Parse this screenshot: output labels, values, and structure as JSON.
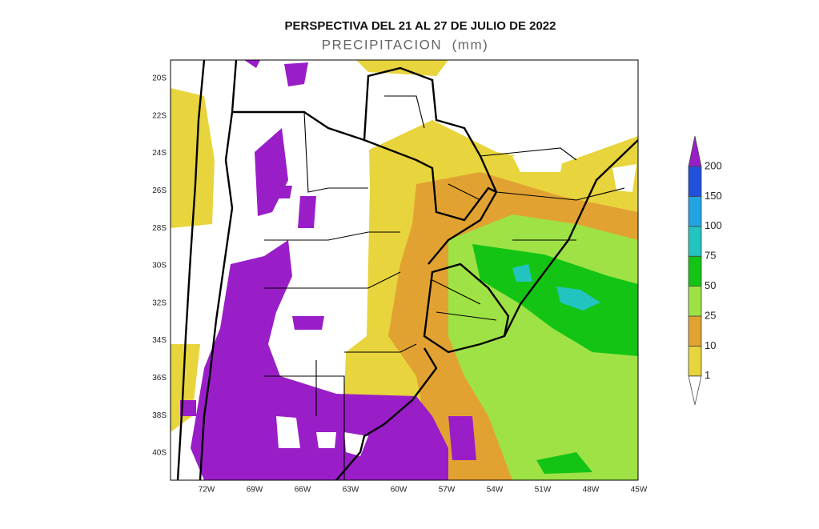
{
  "header": {
    "title": "PERSPECTIVA DEL 21 AL 27 DE JULIO DE 2022",
    "subtitle": "PRECIPITACION  (mm)"
  },
  "map": {
    "lat_labels": [
      "20S",
      "22S",
      "24S",
      "26S",
      "28S",
      "30S",
      "32S",
      "34S",
      "36S",
      "38S",
      "40S"
    ],
    "lon_labels": [
      "72W",
      "69W",
      "66W",
      "63W",
      "60W",
      "57W",
      "54W",
      "51W",
      "48W",
      "45W"
    ]
  },
  "colorbar": {
    "levels": [
      1,
      10,
      25,
      50,
      75,
      100,
      150,
      200
    ],
    "colors": [
      "#ffffff",
      "#e8d43c",
      "#e2a232",
      "#9ee246",
      "#14c414",
      "#22c4c0",
      "#22a4e4",
      "#2050dc",
      "#9a1ec8"
    ]
  }
}
